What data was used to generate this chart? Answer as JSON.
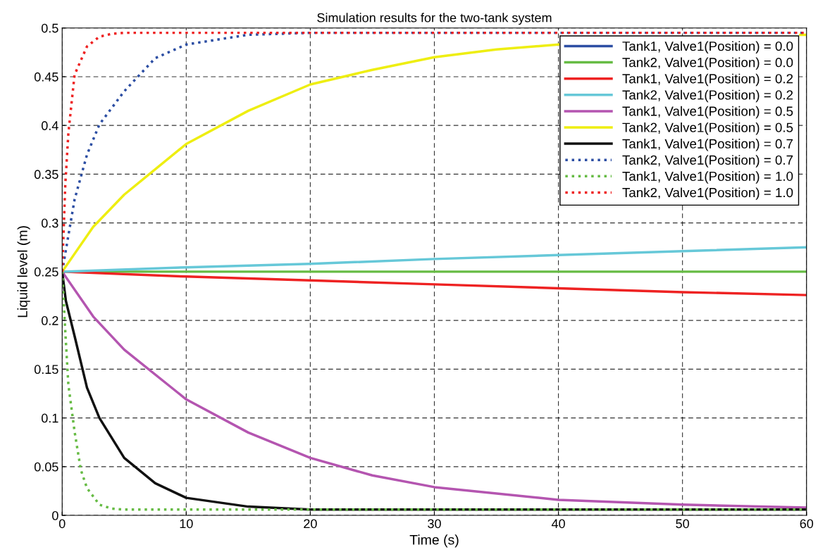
{
  "chart_data": {
    "type": "line",
    "title": "Simulation results for the two-tank system",
    "xlabel": "Time (s)",
    "ylabel": "Liquid level (m)",
    "xlim": [
      0,
      60
    ],
    "xticks": [
      0,
      10,
      20,
      30,
      40,
      50,
      60
    ],
    "ylim": [
      0,
      0.5
    ],
    "yticks": [
      0,
      0.05,
      0.1,
      0.15,
      0.2,
      0.25,
      0.3,
      0.35,
      0.4,
      0.45,
      0.5
    ],
    "grid": true,
    "legend": "top right",
    "line_style": "solid",
    "series": [
      {
        "name": "Tank1, Valve1(Position) = 0.0",
        "color": "#2c4ea3"
      },
      {
        "name": "Tank2, Valve1(Position) = 0.0",
        "color": "#66bb44",
        "x": [
          0,
          60
        ],
        "values": [
          0.25,
          0.25
        ]
      },
      {
        "name": "Tank1, Valve1(Position) = 0.2",
        "color": "#ee2222",
        "x": [
          0,
          10,
          20,
          30,
          40,
          50,
          60
        ],
        "values": [
          0.25,
          0.245,
          0.241,
          0.237,
          0.233,
          0.229,
          0.226
        ]
      },
      {
        "name": "Tank2, Valve1(Position) = 0.2",
        "color": "#66c8d8",
        "x": [
          0,
          10,
          20,
          30,
          40,
          50,
          60
        ],
        "values": [
          0.25,
          0.2545,
          0.258,
          0.263,
          0.267,
          0.271,
          0.275
        ]
      },
      {
        "name": "Tank1, Valve1(Position) = 0.5",
        "color": "#b455b0",
        "x": [
          0,
          2.5,
          5,
          10,
          15,
          20,
          25,
          30,
          40,
          50,
          60
        ],
        "values": [
          0.25,
          0.204,
          0.17,
          0.119,
          0.085,
          0.059,
          0.041,
          0.029,
          0.016,
          0.011,
          0.008
        ]
      },
      {
        "name": "Tank2, Valve1(Position) = 0.5",
        "color": "#eeee11",
        "x": [
          0,
          2.5,
          5,
          10,
          15,
          20,
          25,
          30,
          35,
          40,
          45,
          50,
          55,
          59.5,
          60
        ],
        "values": [
          0.25,
          0.296,
          0.329,
          0.381,
          0.415,
          0.442,
          0.457,
          0.47,
          0.478,
          0.483,
          null,
          null,
          null,
          0.493,
          0.493
        ]
      },
      {
        "name": "Tank1, Valve1(Position) = 0.7",
        "color": "#111111",
        "x": [
          0,
          0.3,
          1,
          2,
          3,
          5,
          7.5,
          10,
          15,
          20,
          60
        ],
        "values": [
          0.25,
          0.22,
          0.184,
          0.131,
          0.1,
          0.059,
          0.033,
          0.018,
          0.009,
          0.006,
          0.006
        ]
      },
      {
        "name": "Tank2, Valve1(Position) = 0.7",
        "color": "#2c4ea3",
        "line_style": "dotted",
        "x": [
          0,
          1,
          2,
          3,
          5,
          7.5,
          10,
          15,
          20,
          60
        ],
        "values": [
          0.25,
          0.324,
          0.37,
          0.401,
          0.435,
          0.469,
          0.483,
          0.493,
          0.495,
          0.495
        ]
      },
      {
        "name": "Tank1, Valve1(Position) = 1.0",
        "color": "#66bb44",
        "line_style": "dotted",
        "x": [
          0,
          0.25,
          0.5,
          1,
          1.5,
          2,
          3,
          4,
          5,
          60
        ],
        "values": [
          0.25,
          0.189,
          0.134,
          0.086,
          0.047,
          0.028,
          0.011,
          0.007,
          0.006,
          0.006
        ]
      },
      {
        "name": "Tank2, Valve1(Position) = 1.0",
        "color": "#ee2222",
        "line_style": "dotted",
        "x": [
          0,
          0.25,
          0.5,
          1,
          2,
          3,
          4,
          5,
          60
        ],
        "values": [
          0.25,
          0.339,
          0.392,
          0.452,
          0.481,
          0.491,
          0.494,
          0.495,
          0.495
        ]
      }
    ]
  }
}
